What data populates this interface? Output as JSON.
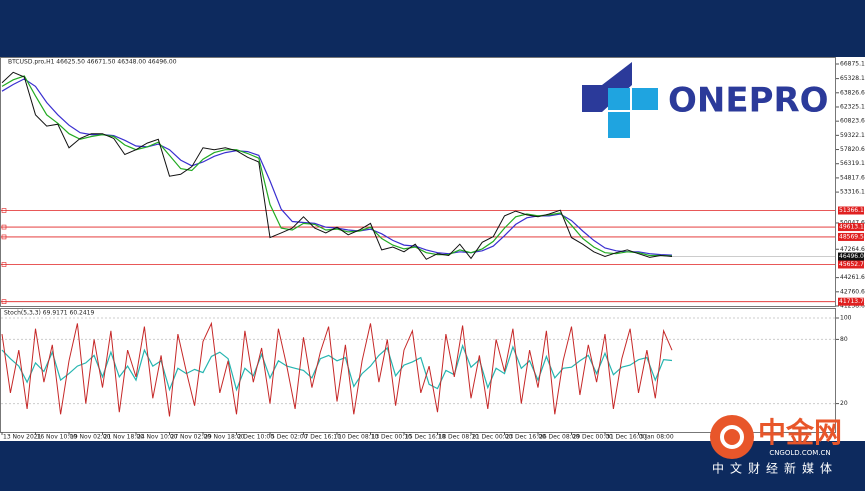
{
  "chart_data": [
    {
      "type": "line",
      "title": "BTCUSD.pro,H1  46625.50 46671.50 46348.00 46496.00",
      "categories": [
        "13 Nov 2021",
        null,
        null,
        "16 Nov 10:00",
        null,
        null,
        "19 Nov 02:00",
        null,
        null,
        "21 Nov 18:00",
        null,
        null,
        "24 Nov 10:00",
        null,
        null,
        "27 Nov 02:00",
        null,
        null,
        "29 Nov 18:00",
        null,
        null,
        "2 Dec 10:00",
        null,
        null,
        "5 Dec 02:00",
        null,
        null,
        "7 Dec 16:10",
        null,
        null,
        "10 Dec 08:10",
        null,
        null,
        "13 Dec 00:10",
        null,
        null,
        "15 Dec 16:10",
        null,
        null,
        "18 Dec 08:10",
        null,
        null,
        "21 Dec 00:00",
        null,
        null,
        "23 Dec 16:00",
        null,
        null,
        "26 Dec 08:00",
        null,
        null,
        "29 Dec 00:00",
        null,
        null,
        "31 Dec 16:00",
        null,
        null,
        "3 Jan 08:00",
        null,
        null,
        null
      ],
      "series": [
        {
          "color": "#111111",
          "values": [
            64900,
            66000,
            65500,
            61500,
            60300,
            60500,
            58000,
            59000,
            59500,
            59500,
            59000,
            57300,
            57800,
            58500,
            58900,
            55000,
            55200,
            56000,
            58000,
            57800,
            58000,
            57700,
            57000,
            56500,
            48500,
            49000,
            49500,
            50700,
            49500,
            49000,
            49600,
            48800,
            49300,
            50000,
            47200,
            47500,
            47000,
            47800,
            46200,
            46800,
            46600,
            47800,
            46300,
            48000,
            48600,
            50800,
            51300,
            50900,
            50700,
            51000,
            51400,
            48500,
            47800,
            47000,
            46500,
            46900,
            47200,
            46800,
            46400,
            46600,
            46496
          ]
        },
        {
          "color": "#22aa22",
          "values": [
            64500,
            65200,
            65600,
            63500,
            61500,
            60600,
            59500,
            58900,
            59200,
            59400,
            59200,
            58300,
            57800,
            58100,
            58600,
            57200,
            55800,
            55600,
            56800,
            57500,
            57800,
            57800,
            57400,
            56900,
            52000,
            49500,
            49300,
            50000,
            49900,
            49300,
            49400,
            49100,
            49200,
            49600,
            48400,
            47700,
            47300,
            47500,
            46900,
            46700,
            46700,
            47200,
            46900,
            47300,
            48100,
            49500,
            50700,
            51000,
            50800,
            50900,
            51100,
            49800,
            48400,
            47500,
            46900,
            46800,
            47000,
            46900,
            46600,
            46600,
            46550
          ]
        },
        {
          "color": "#3a2fd0",
          "values": [
            64000,
            64700,
            65300,
            64500,
            62800,
            61500,
            60400,
            59600,
            59400,
            59400,
            59300,
            58800,
            58200,
            58100,
            58400,
            57800,
            56700,
            56100,
            56500,
            57100,
            57500,
            57700,
            57600,
            57200,
            54500,
            51500,
            50200,
            50100,
            50000,
            49600,
            49500,
            49300,
            49200,
            49400,
            48900,
            48200,
            47700,
            47600,
            47200,
            46900,
            46800,
            47000,
            46900,
            47100,
            47600,
            48700,
            49900,
            50600,
            50800,
            50800,
            51000,
            50300,
            49200,
            48200,
            47400,
            47100,
            47000,
            47000,
            46800,
            46700,
            46650
          ]
        }
      ],
      "ylim": [
        41258.6,
        66875.1
      ],
      "yticks": [
        {
          "value": 66875.1,
          "label": "66875.10"
        },
        {
          "value": 65328.1,
          "label": "65328.10"
        },
        {
          "value": 63826.6,
          "label": "63826.60"
        },
        {
          "value": 62325.1,
          "label": "62325.10"
        },
        {
          "value": 60823.6,
          "label": "60823.60"
        },
        {
          "value": 59322.1,
          "label": "59322.10"
        },
        {
          "value": 57820.6,
          "label": "57820.60"
        },
        {
          "value": 56319.1,
          "label": "56319.10"
        },
        {
          "value": 54817.6,
          "label": "54817.60"
        },
        {
          "value": 53316.1,
          "label": "53316.10"
        },
        {
          "value": 50047.6,
          "label": "50047.60"
        },
        {
          "value": 47264.6,
          "label": "47264.60"
        },
        {
          "value": 44261.6,
          "label": "44261.60"
        },
        {
          "value": 42760.6,
          "label": "42760.60"
        },
        {
          "value": 41258.6,
          "label": "41258.60"
        }
      ],
      "levels": [
        {
          "value": 51366.14,
          "label": "51366.14"
        },
        {
          "value": 49613.14,
          "label": "49613.14"
        },
        {
          "value": 48569.57,
          "label": "48569.57"
        },
        {
          "value": 45652.73,
          "label": "45652.73"
        },
        {
          "value": 41713.74,
          "label": "41713.74"
        }
      ],
      "level_color": "#e02020",
      "last_price": {
        "value": 46496.0,
        "label": "46496.00"
      }
    },
    {
      "type": "line",
      "title": "Stoch(5,3,3) 69.9171 60.2419",
      "series": [
        {
          "color": "#c62828",
          "values": [
            85,
            30,
            70,
            15,
            90,
            40,
            75,
            10,
            60,
            95,
            20,
            80,
            35,
            88,
            12,
            70,
            45,
            92,
            25,
            65,
            8,
            85,
            50,
            18,
            78,
            95,
            30,
            60,
            10,
            88,
            40,
            72,
            20,
            90,
            55,
            15,
            82,
            35,
            68,
            92,
            22,
            75,
            10,
            60,
            95,
            40,
            80,
            18,
            70,
            88,
            30,
            55,
            12,
            85,
            45,
            93,
            25,
            65,
            15,
            80,
            50,
            90,
            20,
            70,
            35,
            88,
            10,
            60,
            92,
            28,
            75,
            40,
            85,
            15,
            62,
            90,
            30,
            70,
            25,
            88,
            69.9171
          ]
        },
        {
          "color": "#26b5b0",
          "values": [
            70,
            62,
            55,
            40,
            58,
            50,
            68,
            42,
            48,
            55,
            58,
            65,
            45,
            68,
            45,
            55,
            42,
            70,
            55,
            60,
            33,
            53,
            48,
            52,
            49,
            64,
            68,
            62,
            33,
            53,
            46,
            66,
            44,
            60,
            55,
            53,
            51,
            44,
            62,
            65,
            60,
            63,
            36,
            48,
            55,
            65,
            72,
            46,
            56,
            59,
            63,
            38,
            34,
            51,
            47,
            74,
            54,
            61,
            35,
            53,
            48,
            73,
            53,
            60,
            42,
            64,
            44,
            53,
            54,
            60,
            65,
            48,
            67,
            47,
            54,
            56,
            61,
            63,
            42,
            61,
            60.2419
          ]
        }
      ],
      "ylim": [
        0,
        100
      ],
      "yticks": [
        100,
        80,
        20
      ]
    }
  ],
  "branding": {
    "logo": "ONEPRO",
    "watermark": "中金网",
    "site": "CNGOLD.COM.CN",
    "tagline": "中文财经新媒体"
  }
}
